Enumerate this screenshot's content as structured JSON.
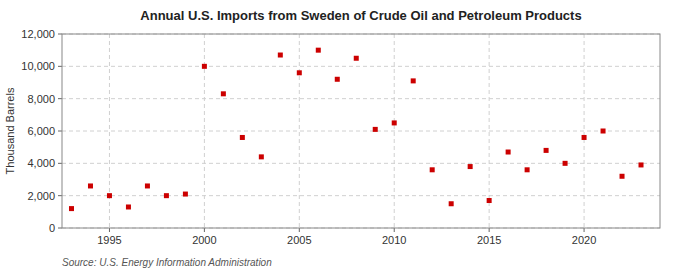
{
  "chart_data": {
    "type": "scatter",
    "title": "Annual U.S. Imports from Sweden of Crude Oil and Petroleum Products",
    "ylabel": "Thousand Barrels",
    "annotation": "Source: U.S. Energy Information Administration",
    "x": [
      1993,
      1994,
      1995,
      1996,
      1997,
      1998,
      1999,
      2000,
      2001,
      2002,
      2003,
      2004,
      2005,
      2006,
      2007,
      2008,
      2009,
      2010,
      2011,
      2012,
      2013,
      2014,
      2015,
      2016,
      2017,
      2018,
      2019,
      2020,
      2021,
      2022,
      2023
    ],
    "values": [
      1200,
      2600,
      2000,
      1300,
      2600,
      2000,
      2100,
      10000,
      8300,
      5600,
      4400,
      10700,
      9600,
      11000,
      9200,
      10500,
      6100,
      6500,
      9100,
      3600,
      1500,
      3800,
      1700,
      4700,
      3600,
      4800,
      4000,
      5600,
      6000,
      3200,
      3900
    ],
    "color": "#cc0000",
    "marker": "square",
    "grid": true,
    "xlim": [
      1992.5,
      2024
    ],
    "xticks": [
      1995,
      2000,
      2005,
      2010,
      2015,
      2020
    ],
    "ylim": [
      0,
      12000
    ],
    "yticks": [
      0,
      {
        "value": 2000,
        "label": "2,000"
      },
      {
        "value": 4000,
        "label": "4,000"
      },
      {
        "value": 6000,
        "label": "6,000"
      },
      {
        "value": 8000,
        "label": "8,000"
      },
      {
        "value": 10000,
        "label": "10,000"
      },
      {
        "value": 12000,
        "label": "12,000"
      }
    ]
  }
}
